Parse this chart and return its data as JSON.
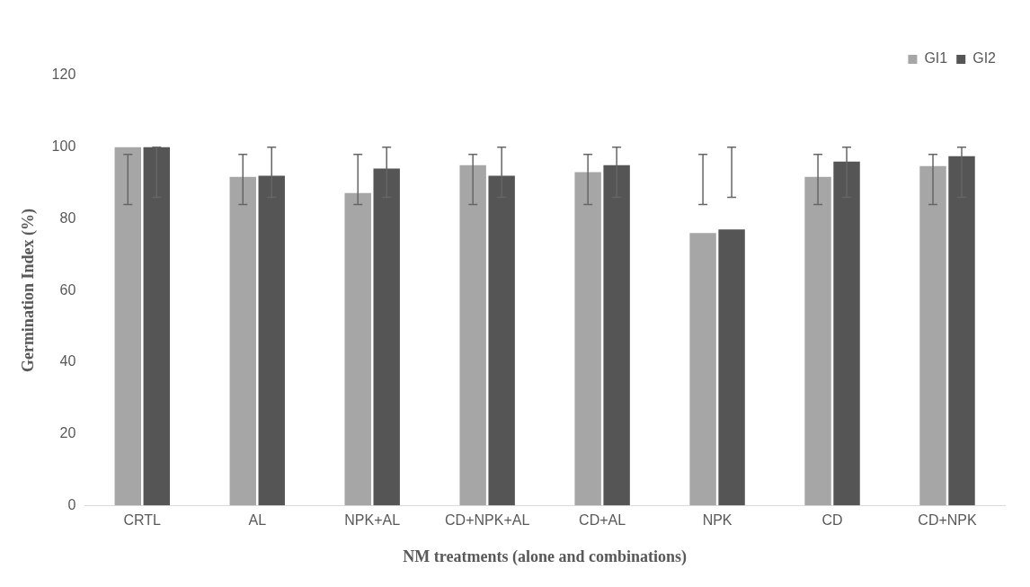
{
  "chart_data": {
    "type": "bar",
    "xlabel": "NM treatments (alone and combinations)",
    "ylabel": "Germination Index (%)",
    "categories": [
      "CRTL",
      "AL",
      "NPK+AL",
      "CD+NPK+AL",
      "CD+AL",
      "NPK",
      "CD",
      "CD+NPK"
    ],
    "series": [
      {
        "name": "GI1",
        "color": "#a6a6a6",
        "values": [
          100,
          91.7,
          87.2,
          95,
          93,
          76,
          91.7,
          94.7
        ],
        "errors": [
          [
            84,
            98
          ],
          [
            84,
            98
          ],
          [
            84,
            98
          ],
          [
            84,
            98
          ],
          [
            84,
            98
          ],
          [
            84,
            98
          ],
          [
            84,
            98
          ],
          [
            84,
            98
          ]
        ]
      },
      {
        "name": "GI2",
        "color": "#555555",
        "values": [
          100,
          92,
          94,
          92,
          95,
          77,
          96,
          97.5
        ],
        "errors": [
          [
            86,
            100
          ],
          [
            86,
            100
          ],
          [
            86,
            100
          ],
          [
            86,
            100
          ],
          [
            86,
            100
          ],
          [
            86,
            100
          ],
          [
            86,
            100
          ],
          [
            86,
            100
          ]
        ]
      }
    ],
    "ylim": [
      0,
      120
    ],
    "yticks": [
      0,
      20,
      40,
      60,
      80,
      100,
      120
    ],
    "grid": false,
    "legend": "top right"
  }
}
